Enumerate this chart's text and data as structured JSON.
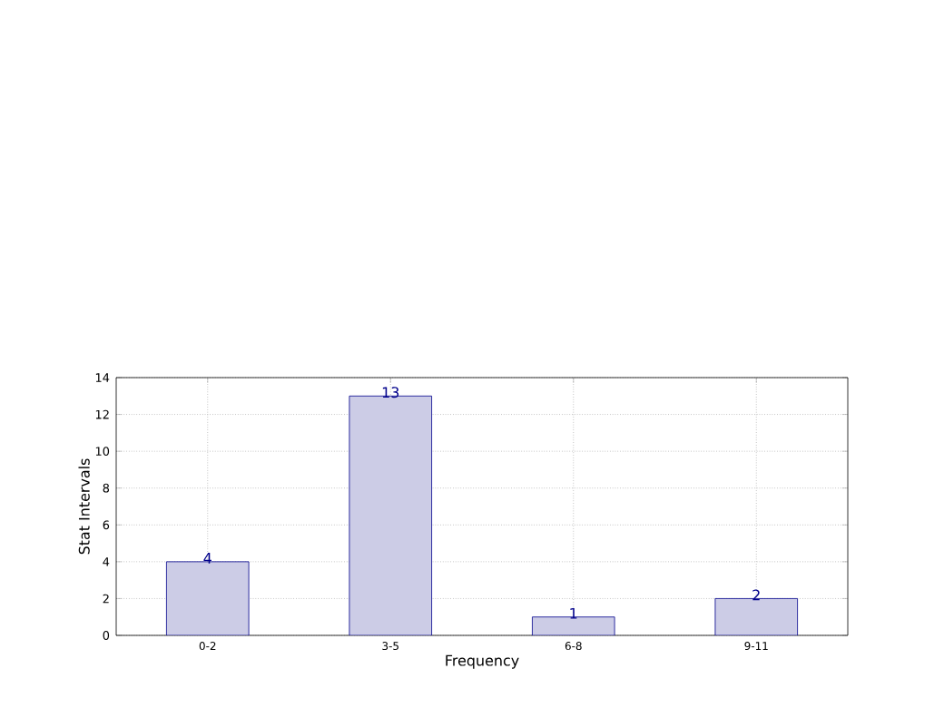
{
  "chart_data": {
    "type": "bar",
    "xlabel": "Frequency",
    "ylabel": "Stat Intervals",
    "categories": [
      "0-2",
      "3-5",
      "6-8",
      "9-11"
    ],
    "values": [
      4,
      13,
      1,
      2
    ],
    "color": "#ccccE6",
    "ylim": [
      0,
      14
    ],
    "yticks": [
      0,
      2,
      4,
      6,
      8,
      10,
      12,
      14
    ],
    "grid": true,
    "line_style": "dotted",
    "data_labels": true
  }
}
